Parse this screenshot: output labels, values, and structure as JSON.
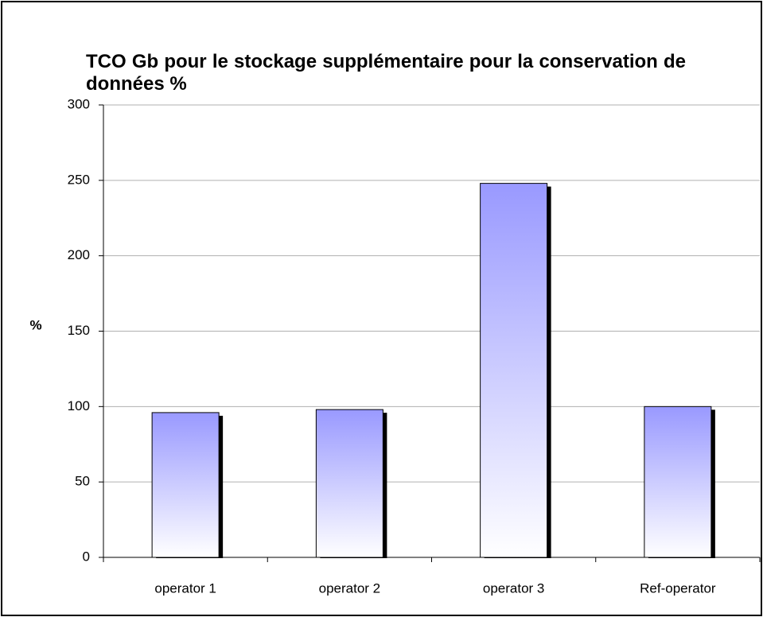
{
  "chart_data": {
    "type": "bar",
    "title": "TCO Gb pour le stockage supplémentaire pour la conservation de données %",
    "y_label": "%",
    "categories": [
      "operator 1",
      "operator 2",
      "operator 3",
      "Ref-operator"
    ],
    "values": [
      96,
      98,
      248,
      100
    ],
    "color": "#9999ff",
    "ylim": [
      0,
      300
    ],
    "yticks": [
      0,
      50,
      100,
      150,
      200,
      250,
      300
    ],
    "grid": true
  }
}
